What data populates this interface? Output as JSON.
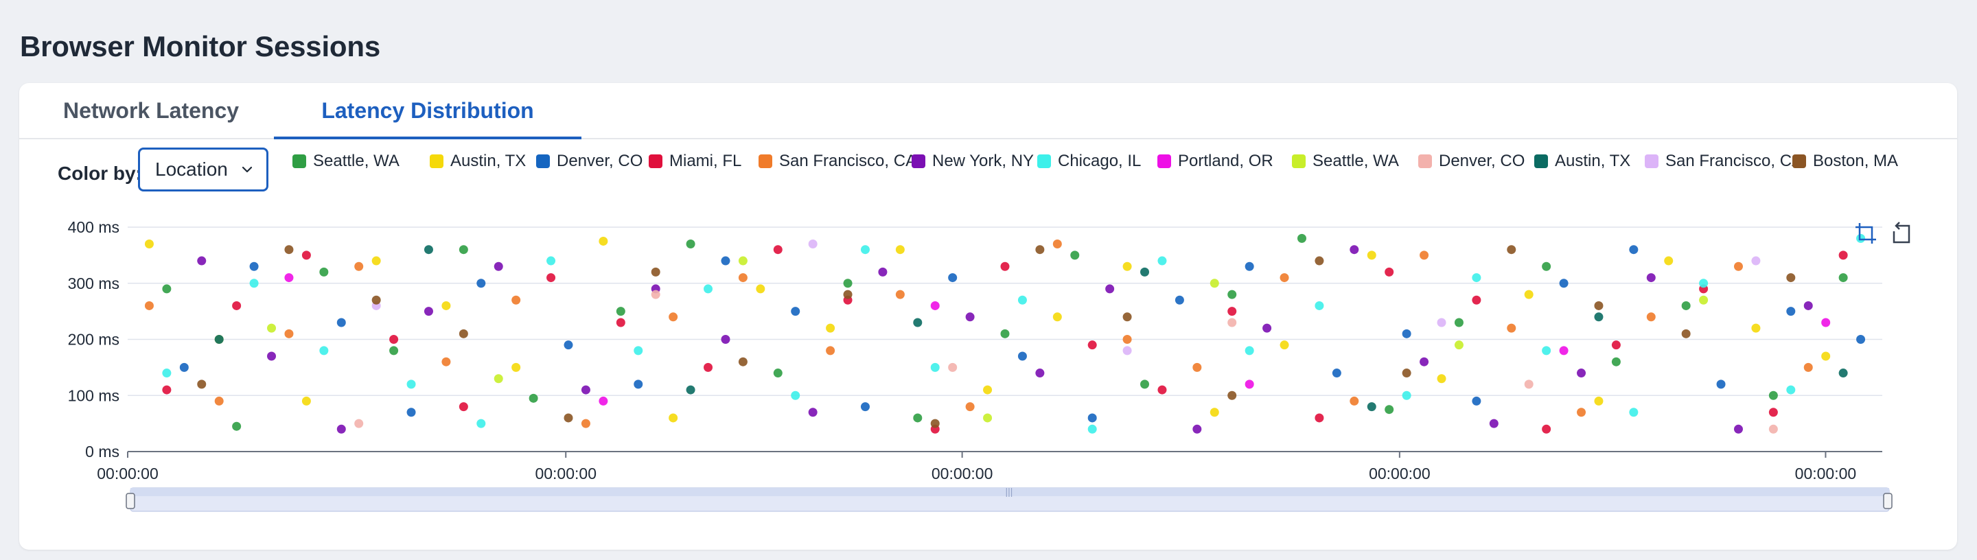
{
  "page": {
    "title": "Browser Monitor Sessions"
  },
  "tabs": [
    {
      "label": "Network Latency",
      "active": false
    },
    {
      "label": "Latency Distribution",
      "active": true
    }
  ],
  "controls": {
    "color_by_label": "Color by:",
    "color_by_value": "Location"
  },
  "toolbar": {
    "zoom_icon": "box-zoom-icon",
    "reset_icon": "reset-zoom-icon"
  },
  "colors": {
    "accent": "#1d5fbf",
    "grid": "#dfe3ec",
    "axis": "#6b7280",
    "slider": "#e3e8f7"
  },
  "chart_data": {
    "type": "scatter",
    "title": "",
    "xlabel": "",
    "ylabel": "",
    "ylim": [
      0,
      400
    ],
    "y_ticks": [
      "0 ms",
      "100 ms",
      "200 ms",
      "300 ms",
      "400 ms"
    ],
    "x_ticks": [
      "00:00:00",
      "00:00:00",
      "00:00:00",
      "00:00:00",
      "00:00:00"
    ],
    "grid": true,
    "legend_placement": "top",
    "legend": [
      {
        "name": "Seattle, WA",
        "color": "#2f9e44"
      },
      {
        "name": "Austin, TX",
        "color": "#f5d90a"
      },
      {
        "name": "Denver, CO",
        "color": "#1565c0"
      },
      {
        "name": "Miami, FL",
        "color": "#e0103c"
      },
      {
        "name": "San Francisco, CA",
        "color": "#f07b2a"
      },
      {
        "name": "New York, NY",
        "color": "#7b0fb3"
      },
      {
        "name": "Chicago, IL",
        "color": "#3df0ea"
      },
      {
        "name": "Portland, OR",
        "color": "#ee10e6"
      },
      {
        "name": "Seattle, WA",
        "color": "#c8ee2a"
      },
      {
        "name": "Denver, CO",
        "color": "#f3b1ac"
      },
      {
        "name": "Austin, TX",
        "color": "#0b6b62"
      },
      {
        "name": "San Francisco, CA",
        "color": "#dcb4f8"
      },
      {
        "name": "Boston, MA",
        "color": "#8b5524"
      }
    ],
    "series": [
      {
        "name": "Seattle, WA",
        "x": [
          0.02,
          0.06,
          0.11,
          0.15,
          0.19,
          0.23,
          0.28,
          0.32,
          0.37,
          0.41,
          0.45,
          0.5,
          0.54,
          0.58,
          0.63,
          0.67,
          0.72,
          0.76,
          0.81,
          0.85,
          0.89,
          0.94,
          0.98
        ],
        "y": [
          290,
          45,
          320,
          180,
          360,
          95,
          250,
          370,
          140,
          300,
          60,
          210,
          350,
          120,
          280,
          380,
          75,
          230,
          330,
          160,
          260,
          100,
          310
        ]
      },
      {
        "name": "Austin, TX",
        "x": [
          0.01,
          0.05,
          0.1,
          0.14,
          0.18,
          0.22,
          0.27,
          0.31,
          0.36,
          0.4,
          0.44,
          0.49,
          0.53,
          0.57,
          0.62,
          0.66,
          0.71,
          0.75,
          0.8,
          0.84,
          0.88,
          0.93,
          0.97
        ],
        "y": [
          370,
          200,
          90,
          340,
          260,
          150,
          375,
          60,
          290,
          220,
          360,
          110,
          240,
          330,
          70,
          190,
          350,
          130,
          280,
          90,
          340,
          220,
          170
        ]
      },
      {
        "name": "Denver, CO",
        "x": [
          0.03,
          0.07,
          0.12,
          0.16,
          0.2,
          0.25,
          0.29,
          0.34,
          0.38,
          0.42,
          0.47,
          0.51,
          0.55,
          0.6,
          0.64,
          0.69,
          0.73,
          0.77,
          0.82,
          0.86,
          0.91,
          0.95,
          0.99
        ],
        "y": [
          150,
          330,
          230,
          70,
          300,
          190,
          120,
          340,
          250,
          80,
          310,
          170,
          60,
          270,
          330,
          140,
          210,
          90,
          300,
          360,
          120,
          250,
          200
        ]
      },
      {
        "name": "Miami, FL",
        "x": [
          0.02,
          0.06,
          0.1,
          0.15,
          0.19,
          0.24,
          0.28,
          0.33,
          0.37,
          0.41,
          0.46,
          0.5,
          0.55,
          0.59,
          0.63,
          0.68,
          0.72,
          0.77,
          0.81,
          0.85,
          0.9,
          0.94,
          0.98
        ],
        "y": [
          110,
          260,
          350,
          200,
          80,
          310,
          230,
          150,
          360,
          270,
          40,
          330,
          190,
          110,
          250,
          60,
          320,
          270,
          40,
          190,
          290,
          70,
          350
        ]
      },
      {
        "name": "San Francisco, CA",
        "x": [
          0.01,
          0.05,
          0.09,
          0.13,
          0.18,
          0.22,
          0.26,
          0.31,
          0.35,
          0.4,
          0.44,
          0.48,
          0.53,
          0.57,
          0.61,
          0.66,
          0.7,
          0.74,
          0.79,
          0.83,
          0.87,
          0.92,
          0.96
        ],
        "y": [
          260,
          90,
          210,
          330,
          160,
          270,
          50,
          240,
          310,
          180,
          280,
          80,
          370,
          200,
          150,
          310,
          90,
          350,
          220,
          70,
          240,
          330,
          150
        ]
      },
      {
        "name": "New York, NY",
        "x": [
          0.04,
          0.08,
          0.12,
          0.17,
          0.21,
          0.26,
          0.3,
          0.34,
          0.39,
          0.43,
          0.48,
          0.52,
          0.56,
          0.61,
          0.65,
          0.7,
          0.74,
          0.78,
          0.83,
          0.87,
          0.92,
          0.96
        ],
        "y": [
          340,
          170,
          40,
          250,
          330,
          110,
          290,
          200,
          70,
          320,
          240,
          140,
          290,
          40,
          220,
          360,
          160,
          50,
          140,
          310,
          40,
          260
        ]
      },
      {
        "name": "Chicago, IL",
        "x": [
          0.02,
          0.07,
          0.11,
          0.16,
          0.2,
          0.24,
          0.29,
          0.33,
          0.38,
          0.42,
          0.46,
          0.51,
          0.55,
          0.59,
          0.64,
          0.68,
          0.73,
          0.77,
          0.81,
          0.86,
          0.9,
          0.95,
          0.99
        ],
        "y": [
          140,
          300,
          180,
          120,
          50,
          340,
          180,
          290,
          100,
          360,
          150,
          270,
          40,
          340,
          180,
          260,
          100,
          310,
          180,
          70,
          300,
          110,
          380
        ]
      },
      {
        "name": "Portland, OR",
        "x": [
          0.09,
          0.27,
          0.46,
          0.64,
          0.82,
          0.97
        ],
        "y": [
          310,
          90,
          260,
          120,
          180,
          230
        ]
      },
      {
        "name": "Seattle, WA",
        "x": [
          0.08,
          0.21,
          0.35,
          0.49,
          0.62,
          0.76,
          0.9
        ],
        "y": [
          220,
          130,
          340,
          60,
          300,
          190,
          270
        ]
      },
      {
        "name": "Denver, CO",
        "x": [
          0.13,
          0.3,
          0.47,
          0.63,
          0.8,
          0.94
        ],
        "y": [
          50,
          280,
          150,
          230,
          120,
          40
        ]
      },
      {
        "name": "Austin, TX",
        "x": [
          0.05,
          0.17,
          0.32,
          0.45,
          0.58,
          0.71,
          0.84,
          0.98
        ],
        "y": [
          200,
          360,
          110,
          230,
          320,
          80,
          240,
          140
        ]
      },
      {
        "name": "San Francisco, CA",
        "x": [
          0.14,
          0.39,
          0.57,
          0.75,
          0.93
        ],
        "y": [
          260,
          370,
          180,
          230,
          340
        ]
      },
      {
        "name": "Boston, MA",
        "x": [
          0.04,
          0.09,
          0.14,
          0.19,
          0.25,
          0.3,
          0.35,
          0.41,
          0.46,
          0.52,
          0.57,
          0.63,
          0.68,
          0.73,
          0.79,
          0.84,
          0.89,
          0.95
        ],
        "y": [
          120,
          360,
          270,
          210,
          60,
          320,
          160,
          280,
          50,
          360,
          240,
          100,
          340,
          140,
          360,
          260,
          210,
          310
        ]
      }
    ]
  }
}
